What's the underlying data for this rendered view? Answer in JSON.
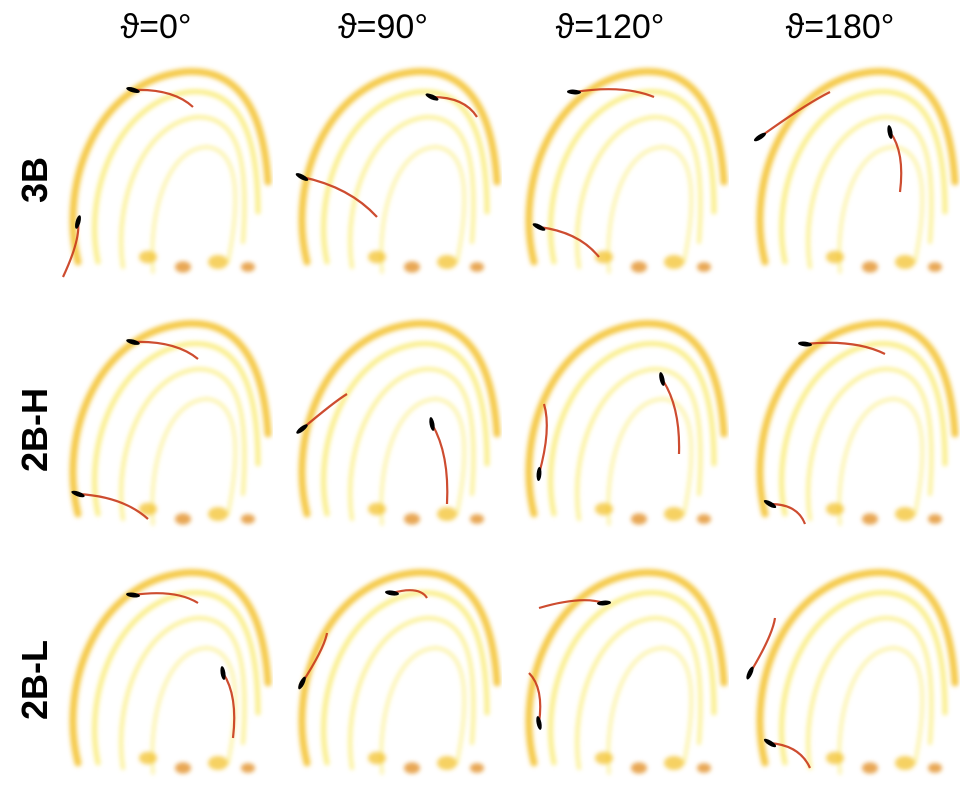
{
  "columns": [
    "ϑ=0°",
    "ϑ=90°",
    "ϑ=120°",
    "ϑ=180°"
  ],
  "rows": [
    "3B",
    "2B-H",
    "2B-L"
  ],
  "colors": {
    "wake_light": "#f9ea6a",
    "wake_mid": "#f3c12b",
    "wake_warm": "#e08a1c",
    "wake_hot": "#c8381a",
    "blade": "#000000"
  }
}
